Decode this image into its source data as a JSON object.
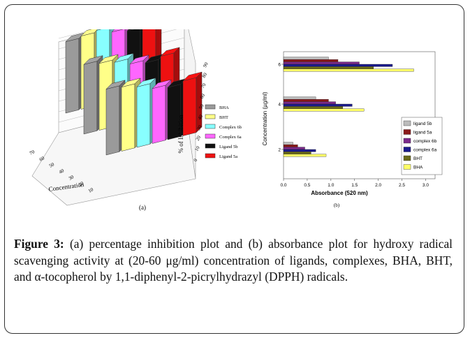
{
  "figure": {
    "caption_label": "Figure 3:",
    "caption_text": " (a) percentage inhibition plot and (b) absorbance plot for hydroxy radical scavenging activity at (20-60 μg/ml) concentration of ligands, complexes, BHA, BHT, and α-tocopherol by 1,1-diphenyl-2-picrylhydrazyl (DPPH) radicals."
  },
  "chart_data": [
    {
      "type": "bar",
      "panel_label": "(a)",
      "title": "",
      "xlabel": "Concentration",
      "ylabel": "% of Inhibition",
      "x_ticks": [
        "70",
        "60",
        "50",
        "40",
        "30",
        "20",
        "10"
      ],
      "y_ticks": [
        "0",
        "10",
        "20",
        "30",
        "40",
        "50",
        "60",
        "70",
        "80",
        "90"
      ],
      "ylim": [
        0,
        90
      ],
      "categories": [
        "60",
        "40",
        "20"
      ],
      "legend": "right",
      "series": [
        {
          "name": "BHA",
          "color": "#9a9a9a",
          "values": [
            78,
            76,
            72
          ]
        },
        {
          "name": "BHT",
          "color": "#ffff88",
          "values": [
            80,
            73,
            70
          ]
        },
        {
          "name": "Complex 6b",
          "color": "#88ffff",
          "values": [
            82,
            70,
            66
          ]
        },
        {
          "name": "Complex 6a",
          "color": "#ff66ff",
          "values": [
            76,
            64,
            60
          ]
        },
        {
          "name": "Ligand 5b",
          "color": "#111111",
          "values": [
            73,
            61,
            57
          ]
        },
        {
          "name": "Ligand 5a",
          "color": "#ee1111",
          "values": [
            76,
            64,
            60
          ]
        }
      ]
    },
    {
      "type": "bar",
      "orientation": "horizontal",
      "panel_label": "(b)",
      "title": "",
      "xlabel": "Absorbance (520 nm)",
      "ylabel": "Concentration (µg/ml)",
      "x_ticks": [
        "0.0",
        "0.5",
        "1.0",
        "1.5",
        "2.0",
        "2.5",
        "3.0"
      ],
      "xlim": [
        0,
        3.2
      ],
      "categories": [
        "2",
        "4",
        "6"
      ],
      "legend": "right",
      "series": [
        {
          "name": "ligand 5b",
          "color": "#bbbbbb",
          "values": [
            0.2,
            0.68,
            0.95
          ]
        },
        {
          "name": "ligand 5a",
          "color": "#8b1a1a",
          "values": [
            0.3,
            0.95,
            1.15
          ]
        },
        {
          "name": "complex 6b",
          "color": "#7b2a8b",
          "values": [
            0.45,
            1.1,
            1.6
          ]
        },
        {
          "name": "complex 6a",
          "color": "#1a1a8b",
          "values": [
            0.68,
            1.45,
            2.3
          ]
        },
        {
          "name": "BHT",
          "color": "#6b6b1a",
          "values": [
            0.58,
            1.25,
            1.9
          ]
        },
        {
          "name": "BHA",
          "color": "#ffff66",
          "values": [
            0.9,
            1.7,
            2.75
          ]
        }
      ]
    }
  ]
}
